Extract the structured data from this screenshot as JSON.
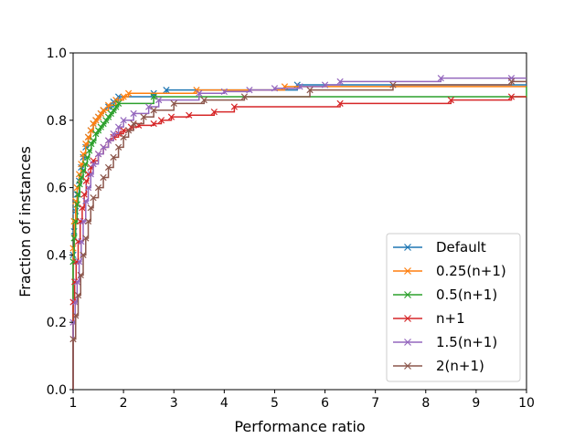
{
  "chart_data": {
    "type": "line",
    "title": "",
    "xlabel": "Performance ratio",
    "ylabel": "Fraction of instances",
    "xlim": [
      1,
      10
    ],
    "ylim": [
      0,
      1.0
    ],
    "xticks": [
      1,
      2,
      3,
      4,
      5,
      6,
      7,
      8,
      9,
      10
    ],
    "yticks": [
      0.0,
      0.2,
      0.4,
      0.6,
      0.8,
      1.0
    ],
    "xtick_labels": [
      "1",
      "2",
      "3",
      "4",
      "5",
      "6",
      "7",
      "8",
      "9",
      "10"
    ],
    "ytick_labels": [
      "0.0",
      "0.2",
      "0.4",
      "0.6",
      "0.8",
      "1.0"
    ],
    "grid": false,
    "legend_position": "lower-right",
    "series": [
      {
        "name": "Default",
        "color": "#1f77b4",
        "marker": "x",
        "x": [
          1.0,
          1.0,
          1.02,
          1.05,
          1.08,
          1.12,
          1.16,
          1.2,
          1.25,
          1.3,
          1.35,
          1.4,
          1.45,
          1.5,
          1.55,
          1.6,
          1.7,
          1.8,
          1.9,
          2.6,
          2.85,
          5.45,
          10.0
        ],
        "y": [
          0.0,
          0.4,
          0.47,
          0.53,
          0.58,
          0.62,
          0.66,
          0.69,
          0.72,
          0.75,
          0.77,
          0.79,
          0.8,
          0.81,
          0.82,
          0.83,
          0.84,
          0.855,
          0.87,
          0.88,
          0.89,
          0.905,
          0.905
        ]
      },
      {
        "name": "0.25(n+1)",
        "color": "#ff7f0e",
        "marker": "x",
        "x": [
          1.0,
          1.0,
          1.02,
          1.05,
          1.08,
          1.12,
          1.16,
          1.2,
          1.25,
          1.3,
          1.35,
          1.4,
          1.45,
          1.5,
          1.55,
          1.6,
          1.7,
          1.85,
          2.0,
          2.1,
          3.45,
          5.2,
          10.0
        ],
        "y": [
          0.0,
          0.42,
          0.5,
          0.56,
          0.6,
          0.64,
          0.67,
          0.7,
          0.73,
          0.75,
          0.77,
          0.79,
          0.8,
          0.81,
          0.82,
          0.83,
          0.845,
          0.86,
          0.87,
          0.88,
          0.89,
          0.9,
          0.9
        ]
      },
      {
        "name": "0.5(n+1)",
        "color": "#2ca02c",
        "marker": "x",
        "x": [
          1.0,
          1.0,
          1.02,
          1.05,
          1.08,
          1.1,
          1.13,
          1.16,
          1.2,
          1.24,
          1.28,
          1.32,
          1.36,
          1.4,
          1.45,
          1.5,
          1.55,
          1.6,
          1.65,
          1.7,
          1.75,
          1.8,
          1.85,
          1.9,
          2.6,
          10.0
        ],
        "y": [
          0.0,
          0.38,
          0.45,
          0.5,
          0.55,
          0.58,
          0.61,
          0.63,
          0.65,
          0.67,
          0.69,
          0.71,
          0.73,
          0.74,
          0.76,
          0.77,
          0.78,
          0.79,
          0.8,
          0.81,
          0.82,
          0.83,
          0.84,
          0.85,
          0.87,
          0.9
        ]
      },
      {
        "name": "n+1",
        "color": "#d62728",
        "marker": "x",
        "x": [
          1.0,
          1.0,
          1.03,
          1.06,
          1.1,
          1.14,
          1.18,
          1.22,
          1.26,
          1.3,
          1.35,
          1.4,
          1.5,
          1.6,
          1.7,
          1.8,
          1.9,
          2.0,
          2.15,
          2.3,
          2.6,
          2.75,
          2.95,
          3.3,
          3.8,
          4.2,
          6.3,
          8.5,
          9.7,
          10.0
        ],
        "y": [
          0.0,
          0.26,
          0.32,
          0.38,
          0.44,
          0.5,
          0.54,
          0.58,
          0.62,
          0.64,
          0.66,
          0.68,
          0.7,
          0.72,
          0.74,
          0.75,
          0.76,
          0.77,
          0.78,
          0.785,
          0.79,
          0.8,
          0.81,
          0.815,
          0.825,
          0.84,
          0.85,
          0.86,
          0.87,
          0.87
        ]
      },
      {
        "name": "1.5(n+1)",
        "color": "#9467bd",
        "marker": "x",
        "x": [
          1.0,
          1.0,
          1.04,
          1.08,
          1.12,
          1.16,
          1.2,
          1.25,
          1.3,
          1.35,
          1.4,
          1.5,
          1.6,
          1.7,
          1.8,
          1.9,
          2.0,
          2.2,
          2.5,
          2.7,
          3.5,
          4.0,
          4.5,
          5.0,
          5.5,
          6.0,
          6.3,
          8.3,
          9.7,
          10.0
        ],
        "y": [
          0.0,
          0.2,
          0.26,
          0.32,
          0.38,
          0.44,
          0.5,
          0.56,
          0.6,
          0.64,
          0.67,
          0.7,
          0.72,
          0.74,
          0.76,
          0.78,
          0.8,
          0.82,
          0.84,
          0.86,
          0.88,
          0.885,
          0.89,
          0.895,
          0.9,
          0.905,
          0.915,
          0.925,
          0.925,
          0.925
        ]
      },
      {
        "name": "2(n+1)",
        "color": "#8c564b",
        "marker": "x",
        "x": [
          1.0,
          1.0,
          1.05,
          1.1,
          1.15,
          1.2,
          1.25,
          1.3,
          1.35,
          1.4,
          1.5,
          1.6,
          1.7,
          1.8,
          1.9,
          2.0,
          2.1,
          2.2,
          2.4,
          2.6,
          3.0,
          3.6,
          4.4,
          5.7,
          7.35,
          9.7,
          10.0
        ],
        "y": [
          0.0,
          0.15,
          0.22,
          0.28,
          0.34,
          0.4,
          0.45,
          0.5,
          0.54,
          0.57,
          0.6,
          0.63,
          0.66,
          0.69,
          0.72,
          0.75,
          0.77,
          0.79,
          0.81,
          0.83,
          0.85,
          0.86,
          0.87,
          0.89,
          0.905,
          0.915,
          0.915
        ]
      }
    ]
  }
}
